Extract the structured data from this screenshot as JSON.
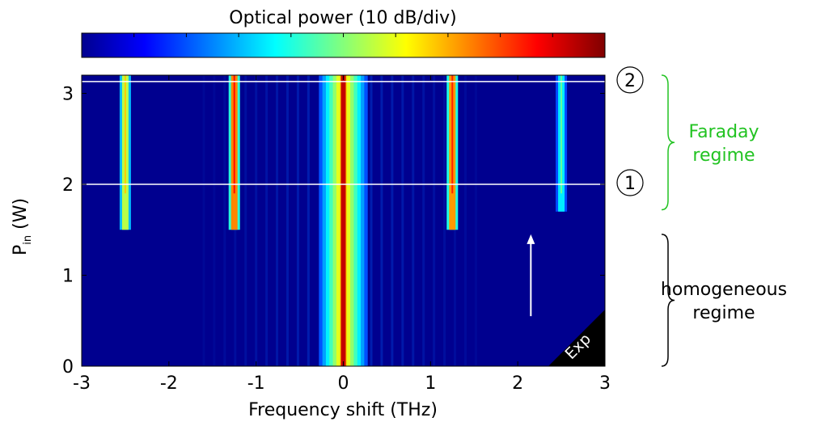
{
  "colorbar": {
    "title": "Optical power (10 dB/div)",
    "colormap": "jet",
    "colors": [
      "#00008f",
      "#0000ff",
      "#00ffff",
      "#ffff00",
      "#ff0000",
      "#800000"
    ]
  },
  "chart_data": {
    "type": "heatmap",
    "xlabel": "Frequency shift (THz)",
    "ylabel_main": "P",
    "ylabel_sub": "in",
    "ylabel_unit": " (W)",
    "xlim": [
      -3,
      3
    ],
    "ylim": [
      0,
      3.2
    ],
    "xticks": [
      -3,
      -2,
      -1,
      0,
      1,
      2,
      3
    ],
    "yticks": [
      0,
      1,
      2,
      3
    ],
    "colormap": "jet",
    "pump": {
      "x": 0,
      "level": 0.93
    },
    "pedestal": {
      "halfwidth_thz": 0.28,
      "level": 0.55
    },
    "sidebands": [
      {
        "x": -2.5,
        "onset_w": 1.5,
        "level": 0.55
      },
      {
        "x": -1.25,
        "onset_w": 1.5,
        "level": 0.74
      },
      {
        "x": 1.25,
        "onset_w": 1.5,
        "level": 0.72
      },
      {
        "x": 2.5,
        "onset_w": 1.7,
        "level": 0.35
      }
    ],
    "markers": [
      {
        "label": "1",
        "y": 2.0
      },
      {
        "label": "2",
        "y": 3.13
      }
    ],
    "arrow": {
      "x": 2.15,
      "y_from": 0.55,
      "y_to": 1.45
    },
    "corner_tag": "Exp",
    "regimes": [
      {
        "lines": [
          "Faraday",
          "regime"
        ],
        "y_from": 1.72,
        "y_to": 3.2,
        "color": "#22c322"
      },
      {
        "lines": [
          "homogeneous",
          "regime"
        ],
        "y_from": 0,
        "y_to": 1.45,
        "color": "#000000"
      }
    ]
  }
}
